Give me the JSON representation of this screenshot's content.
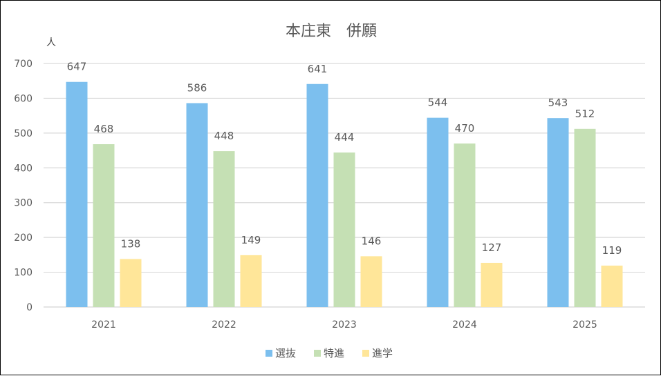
{
  "chart_data": {
    "type": "bar",
    "title": "本庄東　併願",
    "ylabel": "人",
    "xlabel": "",
    "categories": [
      "2021",
      "2022",
      "2023",
      "2024",
      "2025"
    ],
    "series": [
      {
        "name": "選抜",
        "color": "#7cbfee",
        "values": [
          647,
          586,
          641,
          544,
          543
        ]
      },
      {
        "name": "特進",
        "color": "#c5e0b4",
        "values": [
          468,
          448,
          444,
          470,
          512
        ]
      },
      {
        "name": "進学",
        "color": "#ffe699",
        "values": [
          138,
          149,
          146,
          127,
          119
        ]
      }
    ],
    "ylim": [
      0,
      700
    ],
    "yticks": [
      "0",
      "100",
      "200",
      "300",
      "400",
      "500",
      "600",
      "700"
    ],
    "grid": true,
    "legend_position": "bottom",
    "gridline_color": "#d9d9d9"
  }
}
